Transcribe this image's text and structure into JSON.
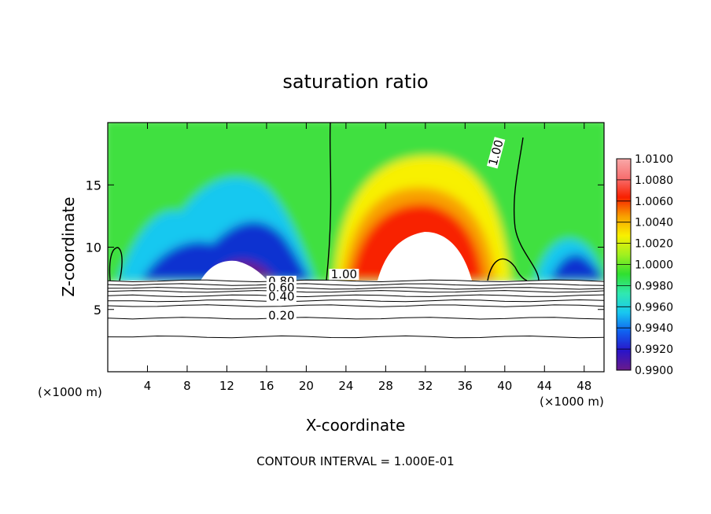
{
  "chart_data": {
    "type": "heatmap",
    "title": "saturation ratio",
    "xlabel": "X-coordinate",
    "ylabel": "Z-coordinate",
    "x_unit_label": "(×1000 m)",
    "footer": "CONTOUR INTERVAL = 1.000E-01",
    "xlim": [
      0,
      50
    ],
    "ylim": [
      0,
      20
    ],
    "x_ticks": [
      4,
      8,
      12,
      16,
      20,
      24,
      28,
      32,
      36,
      40,
      44,
      48
    ],
    "y_ticks": [
      5,
      10,
      15
    ],
    "colorbar": {
      "min": 0.99,
      "max": 1.01,
      "labels": [
        "1.0100",
        "1.0080",
        "1.0060",
        "1.0040",
        "1.0020",
        "1.0000",
        "0.9980",
        "0.9960",
        "0.9940",
        "0.9920",
        "0.9900"
      ],
      "stops": [
        "#6a1a8a",
        "#2a14c8",
        "#1060f0",
        "#18c8f0",
        "#30e8b0",
        "#30e030",
        "#a0f020",
        "#f8f000",
        "#f8a000",
        "#f82000",
        "#f87070",
        "#f8a8a8"
      ]
    },
    "contour_labels": [
      {
        "text": "1.00",
        "x": 39.5,
        "y": 17.5
      },
      {
        "text": "1.00",
        "x": 23.8,
        "y": 7.5
      },
      {
        "text": "0.80",
        "x": 17.5,
        "y": 6.95
      },
      {
        "text": "0.60",
        "x": 17.5,
        "y": 6.45
      },
      {
        "text": "0.40",
        "x": 17.5,
        "y": 5.7
      },
      {
        "text": "0.20",
        "x": 17.5,
        "y": 4.2
      }
    ],
    "stable_contours_y": [
      7.3,
      7.0,
      6.7,
      6.45,
      6.1,
      5.7,
      5.3,
      4.3,
      2.8
    ]
  }
}
